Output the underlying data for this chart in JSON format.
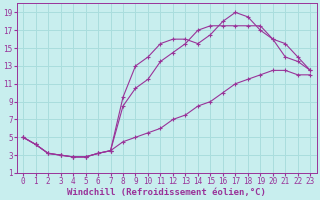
{
  "xlabel": "Windchill (Refroidissement éolien,°C)",
  "bg_color": "#c8eeee",
  "grid_color": "#aadddd",
  "line_color": "#993399",
  "xlim": [
    -0.5,
    23.5
  ],
  "ylim": [
    1,
    20
  ],
  "xticks": [
    0,
    1,
    2,
    3,
    4,
    5,
    6,
    7,
    8,
    9,
    10,
    11,
    12,
    13,
    14,
    15,
    16,
    17,
    18,
    19,
    20,
    21,
    22,
    23
  ],
  "yticks": [
    1,
    3,
    5,
    7,
    9,
    11,
    13,
    15,
    17,
    19
  ],
  "curve_top_x": [
    0,
    1,
    2,
    3,
    4,
    5,
    6,
    7,
    8,
    9,
    10,
    11,
    12,
    13,
    14,
    15,
    16,
    17,
    18,
    19,
    20,
    21,
    22,
    23
  ],
  "curve_top_y": [
    5,
    4.2,
    3.2,
    3.0,
    2.8,
    2.8,
    3.2,
    3.5,
    9.5,
    13.0,
    14.0,
    15.5,
    16.0,
    16.0,
    15.5,
    16.5,
    18.0,
    19.0,
    18.5,
    17.0,
    16.0,
    15.5,
    14.0,
    12.5
  ],
  "curve_mid_x": [
    0,
    1,
    2,
    3,
    4,
    5,
    6,
    7,
    8,
    9,
    10,
    11,
    12,
    13,
    14,
    15,
    16,
    17,
    18,
    19,
    20,
    21,
    22,
    23
  ],
  "curve_mid_y": [
    5,
    4.2,
    3.2,
    3.0,
    2.8,
    2.8,
    3.2,
    3.5,
    8.5,
    10.5,
    11.5,
    13.5,
    14.5,
    15.5,
    17.0,
    17.5,
    17.5,
    17.5,
    17.5,
    17.5,
    16.0,
    14.0,
    13.5,
    12.5
  ],
  "curve_bot_x": [
    0,
    1,
    2,
    3,
    4,
    5,
    6,
    7,
    8,
    9,
    10,
    11,
    12,
    13,
    14,
    15,
    16,
    17,
    18,
    19,
    20,
    21,
    22,
    23
  ],
  "curve_bot_y": [
    5,
    4.2,
    3.2,
    3.0,
    2.8,
    2.8,
    3.2,
    3.5,
    4.5,
    5.0,
    5.5,
    6.0,
    7.0,
    7.5,
    8.5,
    9.0,
    10.0,
    11.0,
    11.5,
    12.0,
    12.5,
    12.5,
    12.0,
    12.0
  ],
  "tick_fontsize": 5.5,
  "xlabel_fontsize": 6.5
}
